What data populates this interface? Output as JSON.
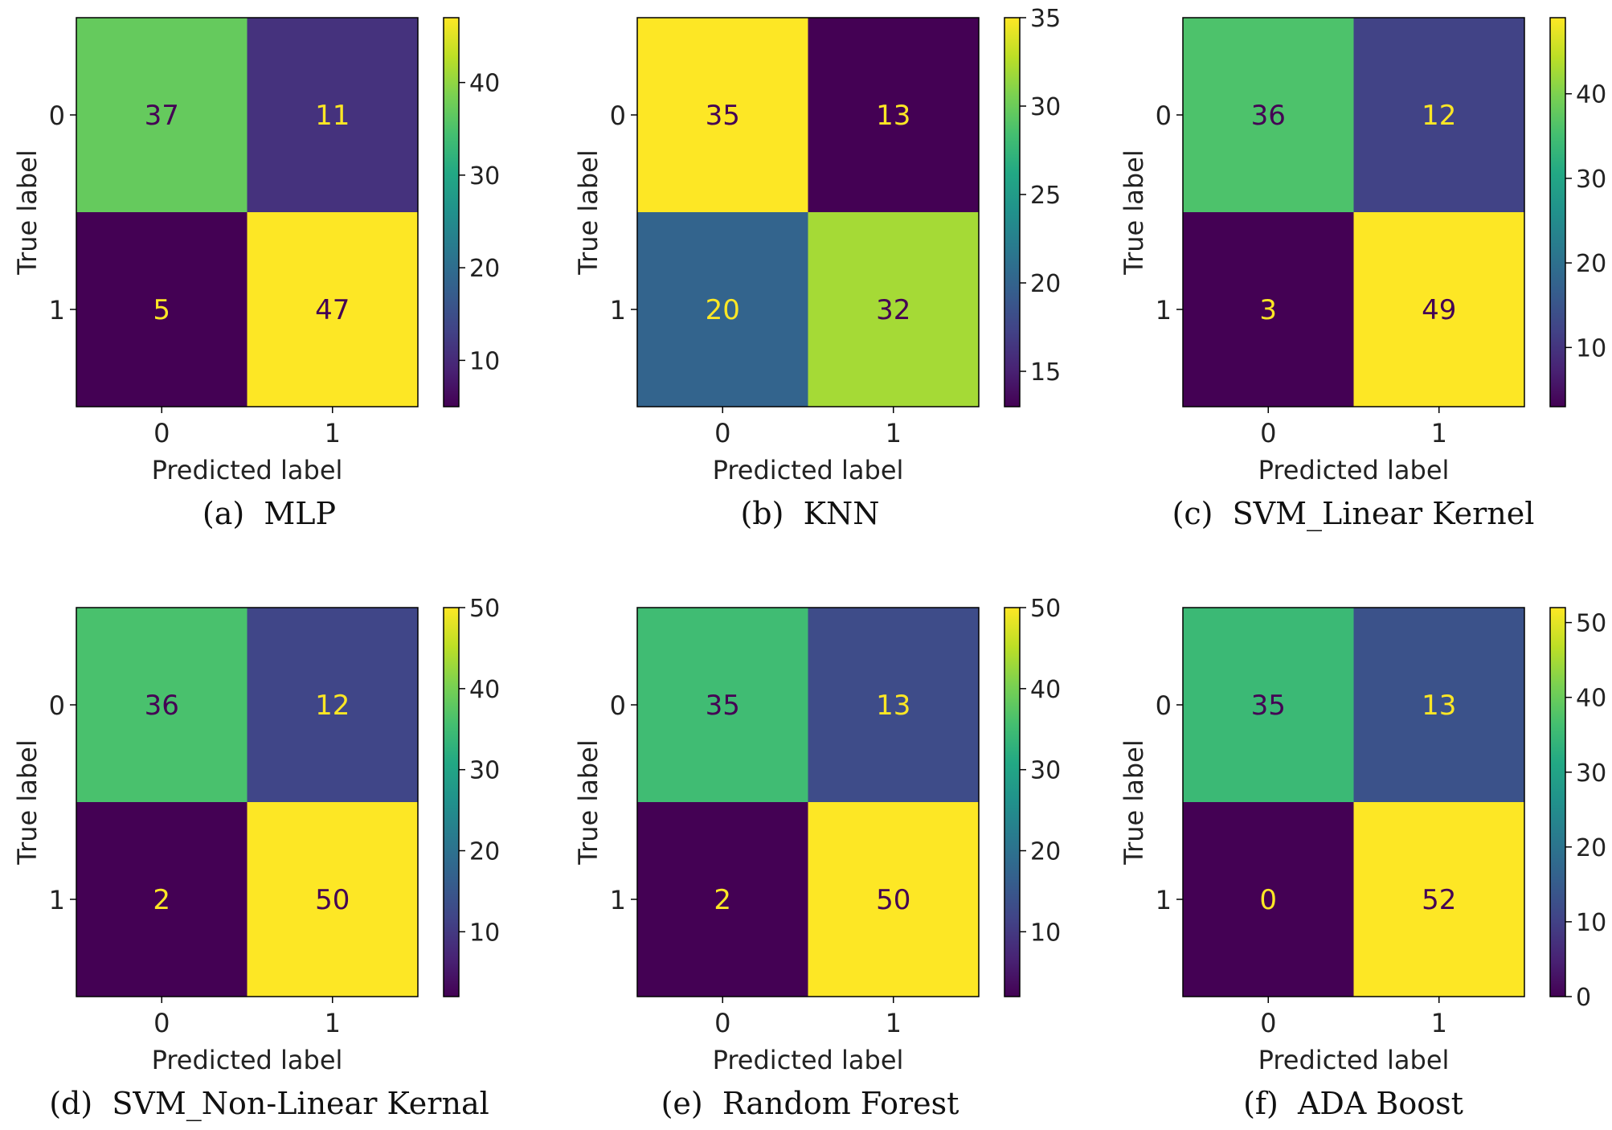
{
  "figure": {
    "background": "#ffffff"
  },
  "chart_data": [
    {
      "type": "heatmap",
      "subtitle": "(a)  MLP",
      "xlabel": "Predicted label",
      "ylabel": "True label",
      "x_categories": [
        "0",
        "1"
      ],
      "y_categories": [
        "0",
        "1"
      ],
      "values": [
        [
          37,
          11
        ],
        [
          5,
          47
        ]
      ],
      "colormap": "viridis",
      "color_range": [
        5,
        47
      ],
      "colorbar_ticks": [
        10,
        20,
        30,
        40
      ]
    },
    {
      "type": "heatmap",
      "subtitle": "(b)  KNN",
      "xlabel": "Predicted label",
      "ylabel": "True label",
      "x_categories": [
        "0",
        "1"
      ],
      "y_categories": [
        "0",
        "1"
      ],
      "values": [
        [
          35,
          13
        ],
        [
          20,
          32
        ]
      ],
      "colormap": "viridis",
      "color_range": [
        13,
        35
      ],
      "colorbar_ticks": [
        15,
        20,
        25,
        30,
        35
      ]
    },
    {
      "type": "heatmap",
      "subtitle": "(c)  SVM_Linear Kernel",
      "xlabel": "Predicted label",
      "ylabel": "True label",
      "x_categories": [
        "0",
        "1"
      ],
      "y_categories": [
        "0",
        "1"
      ],
      "values": [
        [
          36,
          12
        ],
        [
          3,
          49
        ]
      ],
      "colormap": "viridis",
      "color_range": [
        3,
        49
      ],
      "colorbar_ticks": [
        10,
        20,
        30,
        40
      ]
    },
    {
      "type": "heatmap",
      "subtitle": "(d)  SVM_Non-Linear Kernal",
      "xlabel": "Predicted label",
      "ylabel": "True label",
      "x_categories": [
        "0",
        "1"
      ],
      "y_categories": [
        "0",
        "1"
      ],
      "values": [
        [
          36,
          12
        ],
        [
          2,
          50
        ]
      ],
      "colormap": "viridis",
      "color_range": [
        2,
        50
      ],
      "colorbar_ticks": [
        10,
        20,
        30,
        40,
        50
      ]
    },
    {
      "type": "heatmap",
      "subtitle": "(e)  Random Forest",
      "xlabel": "Predicted label",
      "ylabel": "True label",
      "x_categories": [
        "0",
        "1"
      ],
      "y_categories": [
        "0",
        "1"
      ],
      "values": [
        [
          35,
          13
        ],
        [
          2,
          50
        ]
      ],
      "colormap": "viridis",
      "color_range": [
        2,
        50
      ],
      "colorbar_ticks": [
        10,
        20,
        30,
        40,
        50
      ]
    },
    {
      "type": "heatmap",
      "subtitle": "(f)  ADA Boost",
      "xlabel": "Predicted label",
      "ylabel": "True label",
      "x_categories": [
        "0",
        "1"
      ],
      "y_categories": [
        "0",
        "1"
      ],
      "values": [
        [
          35,
          13
        ],
        [
          0,
          52
        ]
      ],
      "colormap": "viridis",
      "color_range": [
        0,
        52
      ],
      "colorbar_ticks": [
        0,
        10,
        20,
        30,
        40,
        50
      ]
    }
  ]
}
